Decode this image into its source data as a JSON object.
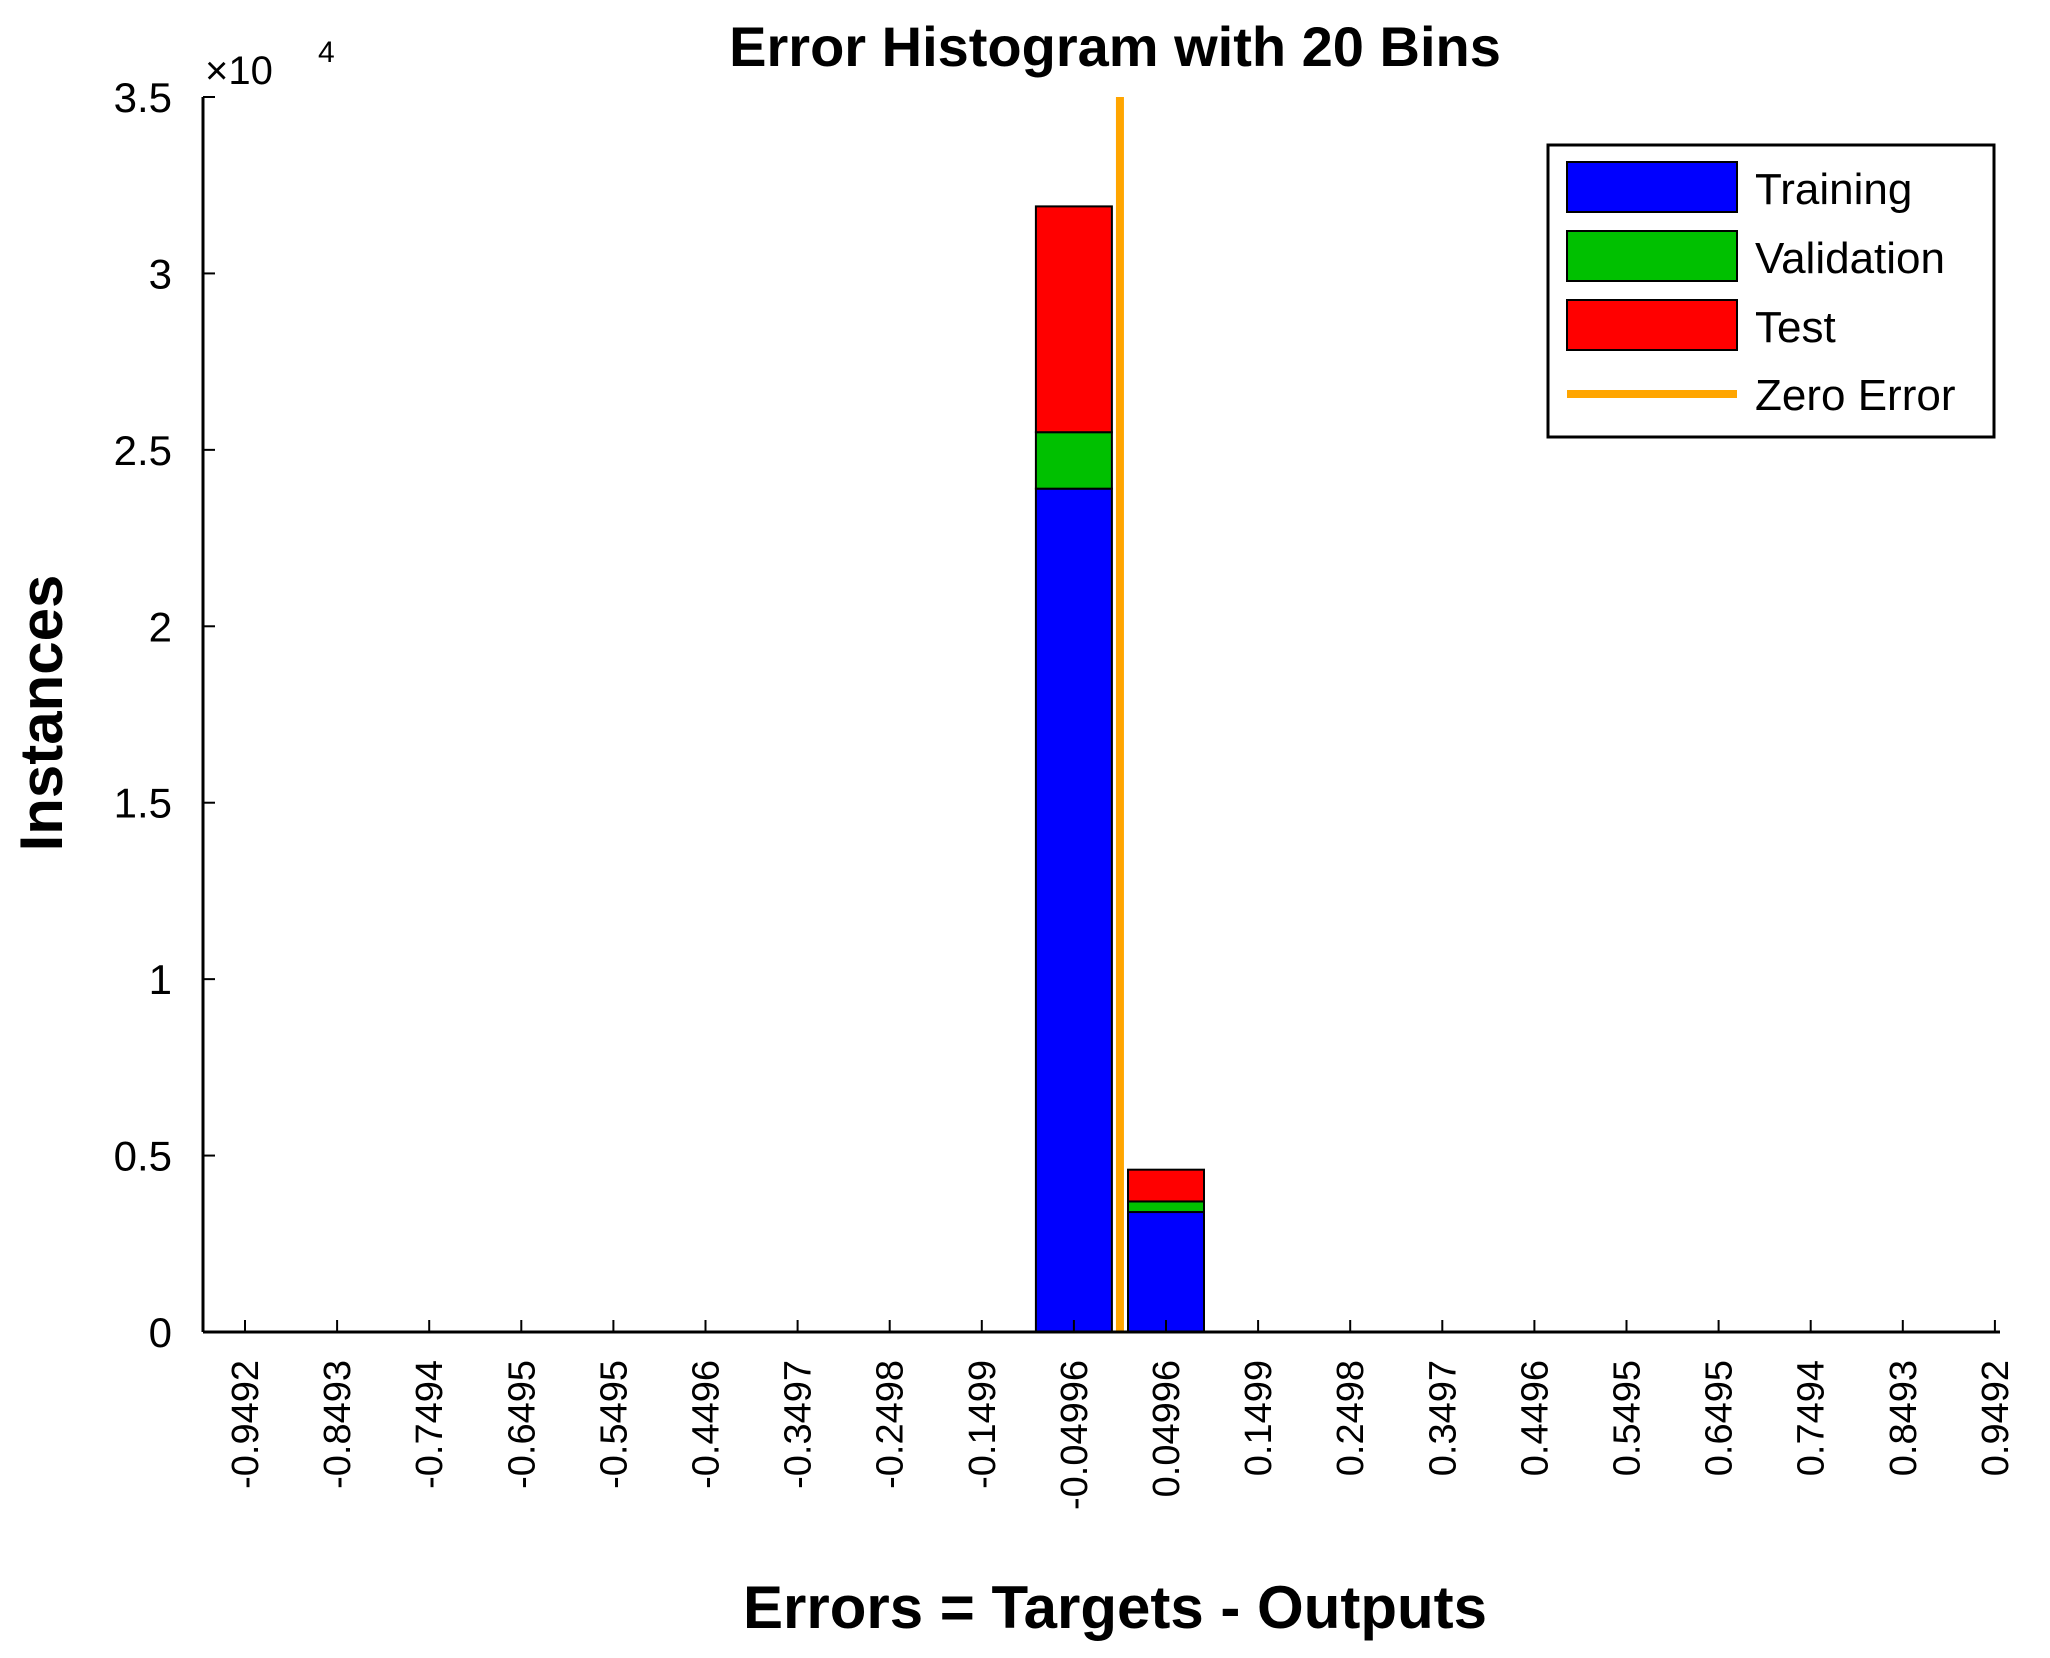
{
  "chart_data": {
    "type": "bar",
    "stacked": true,
    "title": "Error Histogram with 20 Bins",
    "xlabel": "Errors = Targets - Outputs",
    "ylabel": "Instances",
    "y_multiplier": "×10",
    "y_multiplier_exponent": "4",
    "ylim": [
      0,
      3.5
    ],
    "yticks": [
      "0",
      "0.5",
      "1",
      "1.5",
      "2",
      "2.5",
      "3",
      "3.5"
    ],
    "ytick_values": [
      0,
      0.5,
      1,
      1.5,
      2,
      2.5,
      3,
      3.5
    ],
    "categories": [
      "-0.9492",
      "-0.8493",
      "-0.7494",
      "-0.6495",
      "-0.5495",
      "-0.4496",
      "-0.3497",
      "-0.2498",
      "-0.1499",
      "-0.04996",
      "0.04996",
      "0.1499",
      "0.2498",
      "0.3497",
      "0.4496",
      "0.5495",
      "0.6495",
      "0.7494",
      "0.8493",
      "0.9492"
    ],
    "series": [
      {
        "name": "Training",
        "color": "#0000ff",
        "values": [
          0,
          0,
          0,
          0,
          0,
          0,
          0,
          0,
          0,
          2.39,
          0.34,
          0,
          0,
          0,
          0,
          0,
          0,
          0,
          0,
          0
        ]
      },
      {
        "name": "Validation",
        "color": "#00c000",
        "values": [
          0,
          0,
          0,
          0,
          0,
          0,
          0,
          0,
          0,
          0.16,
          0.03,
          0,
          0,
          0,
          0,
          0,
          0,
          0,
          0,
          0
        ]
      },
      {
        "name": "Test",
        "color": "#ff0000",
        "values": [
          0,
          0,
          0,
          0,
          0,
          0,
          0,
          0,
          0,
          0.64,
          0.09,
          0,
          0,
          0,
          0,
          0,
          0,
          0,
          0,
          0
        ]
      }
    ],
    "zero_error": {
      "name": "Zero Error",
      "x": 0,
      "color": "#ffa500"
    },
    "legend_position": "top-right",
    "grid": false
  }
}
